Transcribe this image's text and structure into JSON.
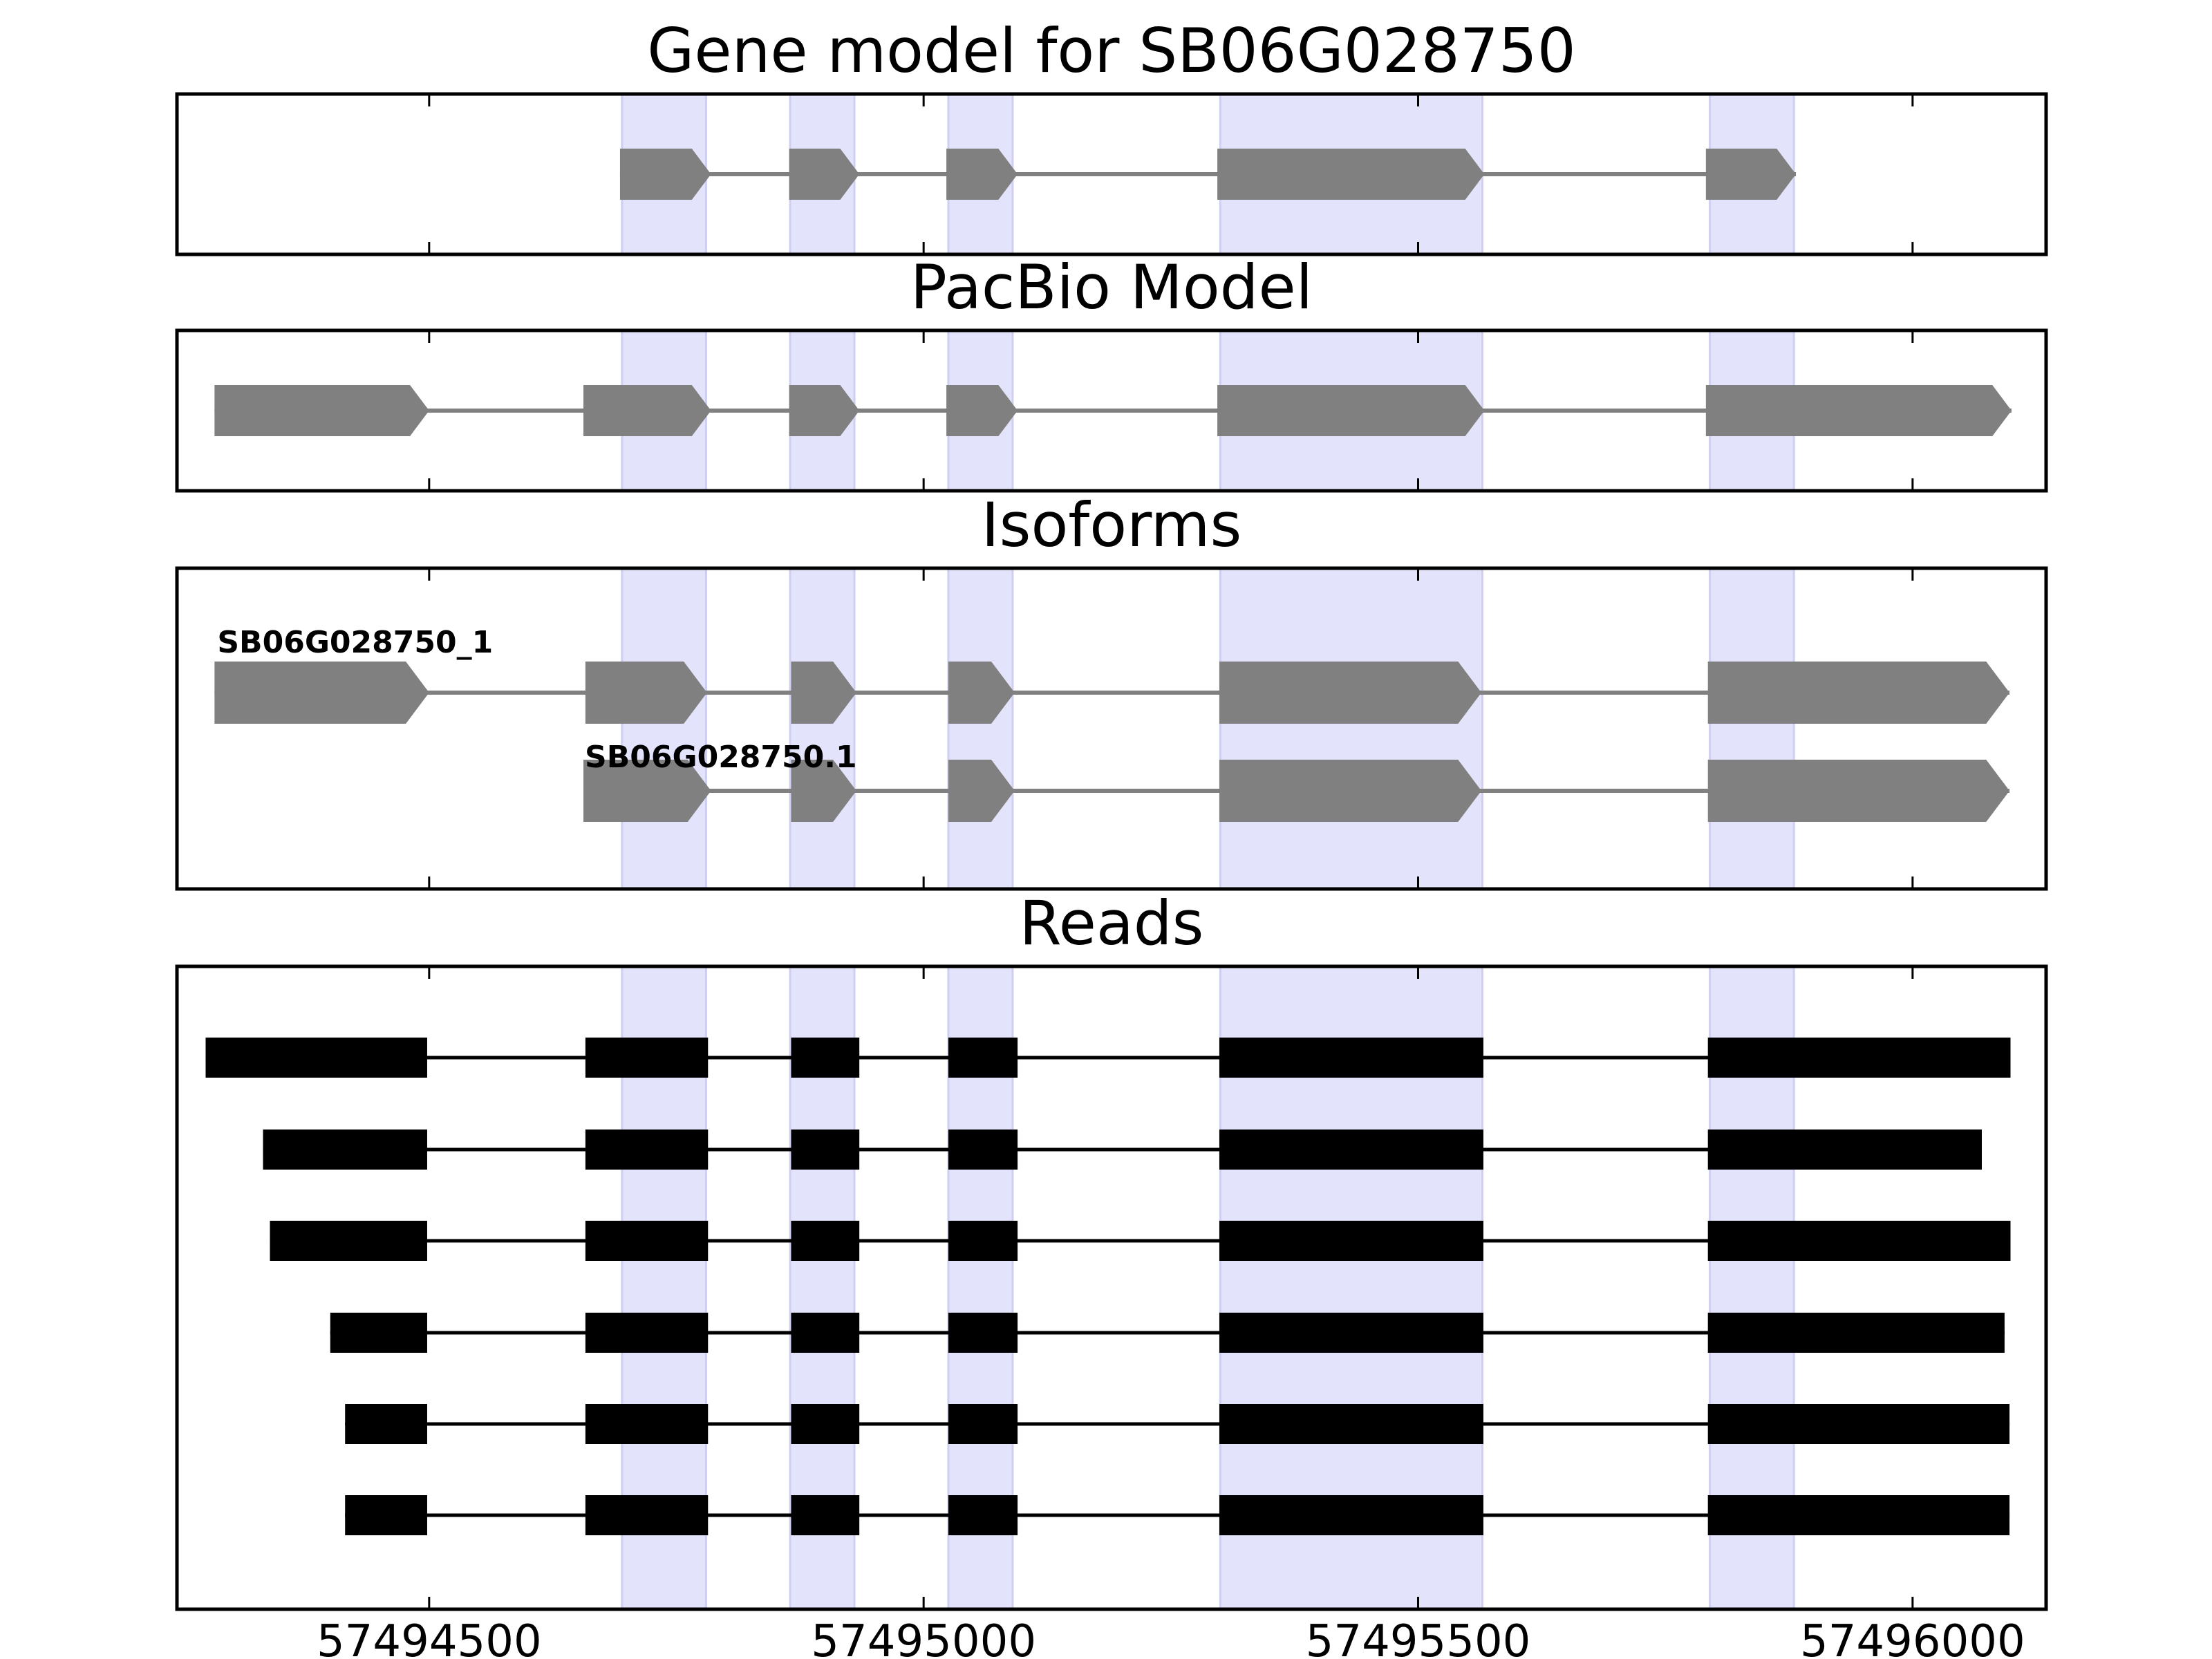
{
  "chart_data": {
    "type": "gene-track",
    "xlim": [
      57494245,
      57496135
    ],
    "x_ticks": [
      57494500,
      57495000,
      57495500,
      57496000
    ],
    "x_tick_labels": [
      "57494500",
      "57495000",
      "57495500",
      "57496000"
    ],
    "grid": false,
    "highlight_color": "#e3e3fc",
    "feature_color": "#808080",
    "read_color": "#000000",
    "highlight_regions": [
      [
        57494695,
        57494780
      ],
      [
        57494865,
        57494930
      ],
      [
        57495025,
        57495090
      ],
      [
        57495300,
        57495565
      ],
      [
        57495795,
        57495880
      ]
    ],
    "panels": [
      {
        "title": "Gene model for SB06G028750",
        "kind": "arrows",
        "tracks": [
          {
            "label": "",
            "exons": [
              [
                57494693,
                57494785
              ],
              [
                57494864,
                57494935
              ],
              [
                57495023,
                57495095
              ],
              [
                57495297,
                57495567
              ],
              [
                57495791,
                57495882
              ]
            ]
          }
        ]
      },
      {
        "title": "PacBio Model",
        "kind": "arrows",
        "tracks": [
          {
            "label": "",
            "exons": [
              [
                57494283,
                57494500
              ],
              [
                57494656,
                57494785
              ],
              [
                57494864,
                57494935
              ],
              [
                57495023,
                57495095
              ],
              [
                57495297,
                57495567
              ],
              [
                57495791,
                57496100
              ]
            ]
          }
        ]
      },
      {
        "title": "Isoforms",
        "kind": "arrows",
        "tracks": [
          {
            "label": "SB06G028750_1",
            "exons": [
              [
                57494283,
                57494500
              ],
              [
                57494658,
                57494781
              ],
              [
                57494866,
                57494932
              ],
              [
                57495025,
                57495092
              ],
              [
                57495299,
                57495564
              ],
              [
                57495793,
                57496098
              ]
            ]
          },
          {
            "label": "SB06G028750.1",
            "exons": [
              [
                57494656,
                57494785
              ],
              [
                57494866,
                57494932
              ],
              [
                57495025,
                57495092
              ],
              [
                57495299,
                57495564
              ],
              [
                57495793,
                57496098
              ]
            ]
          }
        ]
      },
      {
        "title": "Reads",
        "kind": "blocks",
        "tracks": [
          {
            "label": "",
            "exons": [
              [
                57494274,
                57494498
              ],
              [
                57494658,
                57494782
              ],
              [
                57494866,
                57494935
              ],
              [
                57495025,
                57495095
              ],
              [
                57495299,
                57495566
              ],
              [
                57495793,
                57496099
              ]
            ]
          },
          {
            "label": "",
            "exons": [
              [
                57494332,
                57494498
              ],
              [
                57494658,
                57494782
              ],
              [
                57494866,
                57494935
              ],
              [
                57495025,
                57495095
              ],
              [
                57495299,
                57495566
              ],
              [
                57495793,
                57496070
              ]
            ]
          },
          {
            "label": "",
            "exons": [
              [
                57494339,
                57494498
              ],
              [
                57494658,
                57494782
              ],
              [
                57494866,
                57494935
              ],
              [
                57495025,
                57495095
              ],
              [
                57495299,
                57495566
              ],
              [
                57495793,
                57496099
              ]
            ]
          },
          {
            "label": "",
            "exons": [
              [
                57494400,
                57494498
              ],
              [
                57494658,
                57494782
              ],
              [
                57494866,
                57494935
              ],
              [
                57495025,
                57495095
              ],
              [
                57495299,
                57495566
              ],
              [
                57495793,
                57496093
              ]
            ]
          },
          {
            "label": "",
            "exons": [
              [
                57494415,
                57494498
              ],
              [
                57494658,
                57494782
              ],
              [
                57494866,
                57494935
              ],
              [
                57495025,
                57495095
              ],
              [
                57495299,
                57495566
              ],
              [
                57495793,
                57496098
              ]
            ]
          },
          {
            "label": "",
            "exons": [
              [
                57494415,
                57494498
              ],
              [
                57494658,
                57494782
              ],
              [
                57494866,
                57494935
              ],
              [
                57495025,
                57495095
              ],
              [
                57495299,
                57495566
              ],
              [
                57495793,
                57496098
              ]
            ]
          }
        ]
      }
    ]
  }
}
